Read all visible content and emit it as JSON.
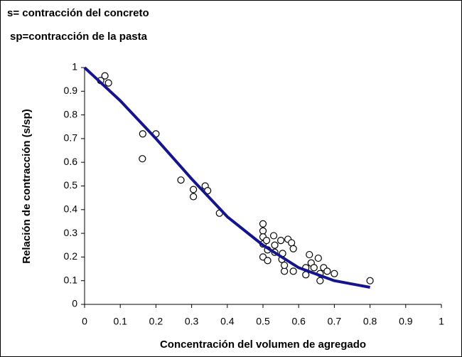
{
  "chart_data": {
    "type": "scatter",
    "annotations": [
      "s= contracción del concreto",
      "sp=contracción de la pasta"
    ],
    "x_label": "Concentración del volumen de agregado",
    "y_label": "Relación de contracción (s/sp)",
    "xlim": [
      0,
      1
    ],
    "xticks": [
      0,
      0.1,
      0.2,
      0.3,
      0.4,
      0.5,
      0.6,
      0.7,
      0.8,
      0.9,
      1
    ],
    "ylim": [
      0,
      1
    ],
    "yticks": [
      0,
      0.1,
      0.2,
      0.3,
      0.4,
      0.5,
      0.6,
      0.7,
      0.8,
      0.9,
      1
    ],
    "grid": false,
    "series": [
      {
        "mode": "markers",
        "color": "#000000",
        "x": [
          0.045,
          0.057,
          0.067,
          0.163,
          0.2,
          0.162,
          0.27,
          0.305,
          0.305,
          0.338,
          0.345,
          0.378,
          0.5,
          0.5,
          0.5,
          0.5,
          0.5,
          0.51,
          0.513,
          0.513,
          0.53,
          0.533,
          0.533,
          0.55,
          0.553,
          0.555,
          0.56,
          0.56,
          0.57,
          0.58,
          0.585,
          0.585,
          0.62,
          0.62,
          0.63,
          0.635,
          0.643,
          0.655,
          0.66,
          0.66,
          0.67,
          0.68,
          0.7,
          0.8
        ],
        "values": [
          0.945,
          0.965,
          0.935,
          0.72,
          0.72,
          0.615,
          0.525,
          0.485,
          0.455,
          0.5,
          0.48,
          0.385,
          0.34,
          0.31,
          0.285,
          0.255,
          0.2,
          0.27,
          0.23,
          0.185,
          0.29,
          0.25,
          0.22,
          0.27,
          0.19,
          0.215,
          0.14,
          0.165,
          0.275,
          0.26,
          0.235,
          0.14,
          0.155,
          0.125,
          0.21,
          0.175,
          0.155,
          0.195,
          0.13,
          0.1,
          0.155,
          0.14,
          0.13,
          0.1
        ]
      },
      {
        "mode": "line",
        "color": "#14148c",
        "x": [
          0,
          0.1,
          0.2,
          0.3,
          0.4,
          0.5,
          0.6,
          0.7,
          0.8
        ],
        "values": [
          1,
          0.86,
          0.7,
          0.53,
          0.37,
          0.25,
          0.155,
          0.1,
          0.072
        ]
      }
    ]
  }
}
